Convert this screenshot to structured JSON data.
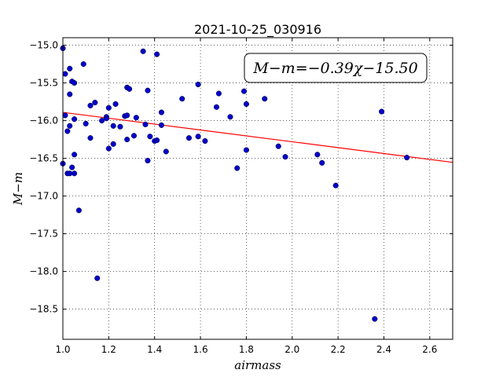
{
  "chart_data": {
    "type": "scatter",
    "title": "2021-10-25_030916",
    "xlabel": "airmass",
    "ylabel": "M−m",
    "xlim": [
      1.0,
      2.7
    ],
    "ylim": [
      -18.9,
      -14.9
    ],
    "grid": true,
    "x_ticks": [
      "1.0",
      "1.2",
      "1.4",
      "1.6",
      "1.8",
      "2.0",
      "2.2",
      "2.4",
      "2.6"
    ],
    "y_ticks": [
      "−15.0",
      "−15.5",
      "−16.0",
      "−16.5",
      "−17.0",
      "−17.5",
      "−18.0",
      "−18.5"
    ],
    "annotation": "M−m=−0.39χ−15.50",
    "fit": {
      "slope": -0.39,
      "intercept": -15.5,
      "color": "#ff0000"
    },
    "marker_color": "#0000cc",
    "points": [
      [
        1.0,
        -15.04
      ],
      [
        1.0,
        -16.57
      ],
      [
        1.01,
        -15.38
      ],
      [
        1.01,
        -15.93
      ],
      [
        1.02,
        -16.14
      ],
      [
        1.02,
        -16.7
      ],
      [
        1.03,
        -16.07
      ],
      [
        1.03,
        -15.65
      ],
      [
        1.03,
        -16.7
      ],
      [
        1.03,
        -15.31
      ],
      [
        1.04,
        -15.48
      ],
      [
        1.04,
        -16.62
      ],
      [
        1.05,
        -15.5
      ],
      [
        1.05,
        -16.45
      ],
      [
        1.05,
        -16.7
      ],
      [
        1.05,
        -15.98
      ],
      [
        1.07,
        -17.19
      ],
      [
        1.09,
        -15.25
      ],
      [
        1.1,
        -16.04
      ],
      [
        1.12,
        -15.8
      ],
      [
        1.12,
        -16.23
      ],
      [
        1.14,
        -15.76
      ],
      [
        1.15,
        -18.09
      ],
      [
        1.17,
        -16.0
      ],
      [
        1.19,
        -15.95
      ],
      [
        1.19,
        -15.97
      ],
      [
        1.2,
        -15.83
      ],
      [
        1.2,
        -16.37
      ],
      [
        1.22,
        -16.07
      ],
      [
        1.22,
        -16.31
      ],
      [
        1.23,
        -15.78
      ],
      [
        1.25,
        -16.08
      ],
      [
        1.27,
        -15.94
      ],
      [
        1.28,
        -15.93
      ],
      [
        1.28,
        -16.25
      ],
      [
        1.28,
        -15.56
      ],
      [
        1.29,
        -15.58
      ],
      [
        1.31,
        -16.2
      ],
      [
        1.32,
        -15.96
      ],
      [
        1.35,
        -15.08
      ],
      [
        1.36,
        -16.05
      ],
      [
        1.37,
        -15.6
      ],
      [
        1.37,
        -16.53
      ],
      [
        1.38,
        -16.21
      ],
      [
        1.4,
        -16.27
      ],
      [
        1.41,
        -15.12
      ],
      [
        1.41,
        -16.26
      ],
      [
        1.43,
        -15.89
      ],
      [
        1.43,
        -16.06
      ],
      [
        1.45,
        -16.41
      ],
      [
        1.52,
        -15.71
      ],
      [
        1.55,
        -16.23
      ],
      [
        1.59,
        -15.52
      ],
      [
        1.59,
        -16.21
      ],
      [
        1.62,
        -16.27
      ],
      [
        1.67,
        -15.82
      ],
      [
        1.68,
        -15.64
      ],
      [
        1.73,
        -15.95
      ],
      [
        1.76,
        -16.63
      ],
      [
        1.79,
        -15.61
      ],
      [
        1.8,
        -16.39
      ],
      [
        1.8,
        -15.78
      ],
      [
        1.88,
        -15.71
      ],
      [
        1.94,
        -16.34
      ],
      [
        1.97,
        -16.48
      ],
      [
        2.11,
        -16.45
      ],
      [
        2.13,
        -16.56
      ],
      [
        2.19,
        -16.86
      ],
      [
        2.36,
        -18.63
      ],
      [
        2.39,
        -15.88
      ],
      [
        2.5,
        -16.49
      ]
    ]
  }
}
